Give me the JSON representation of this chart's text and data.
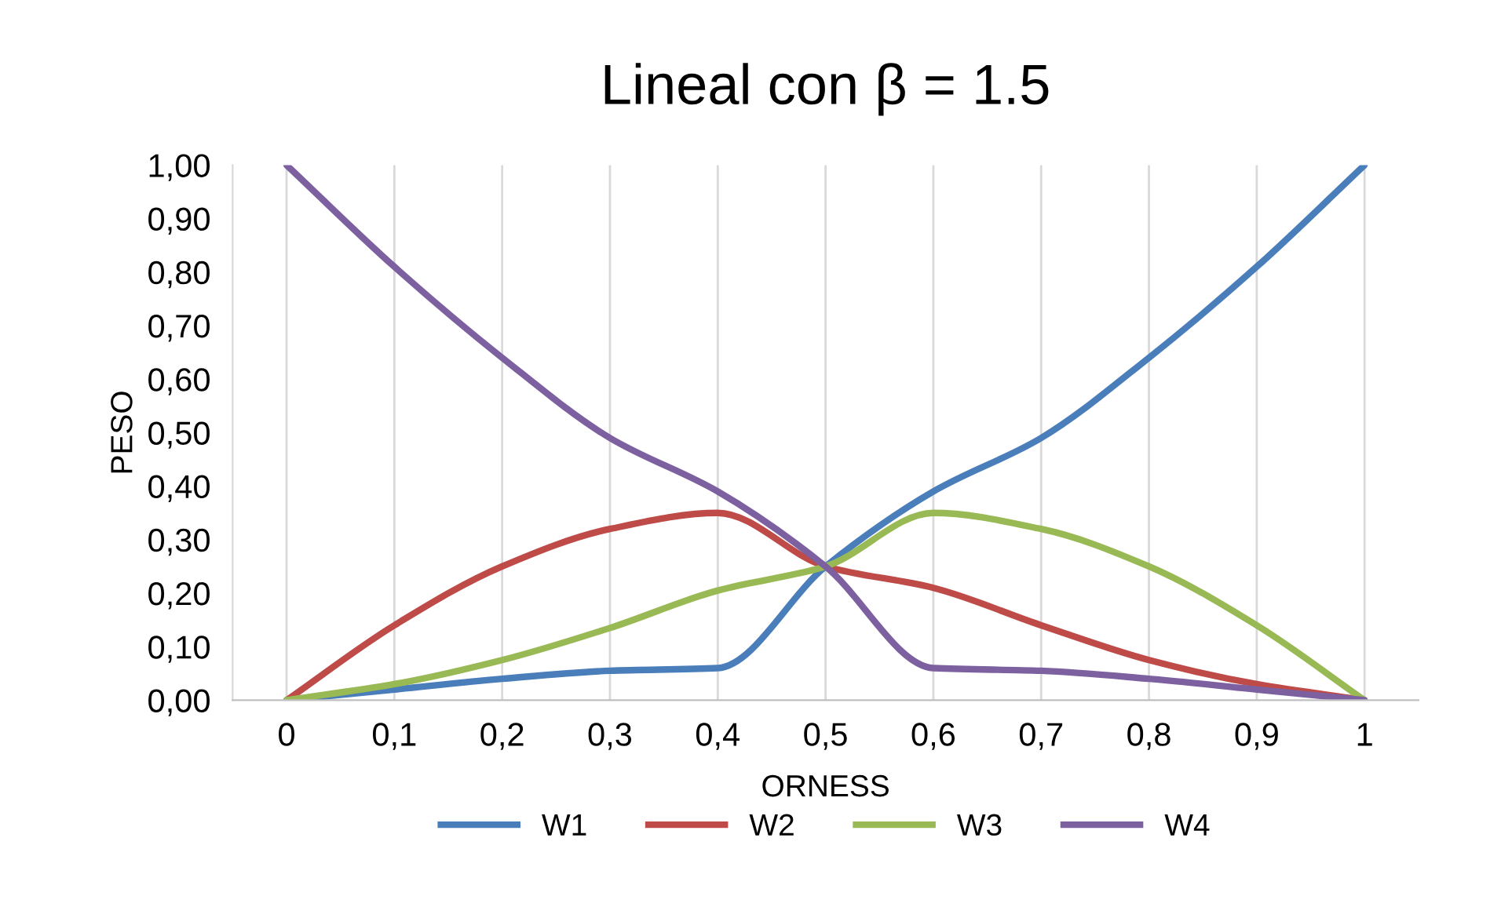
{
  "chart_data": {
    "type": "line",
    "title": "Lineal con β = 1.5",
    "xlabel": "ORNESS",
    "ylabel": "PESO",
    "categories": [
      "0",
      "0,1",
      "0,2",
      "0,3",
      "0,4",
      "0,5",
      "0,6",
      "0,7",
      "0,8",
      "0,9",
      "1"
    ],
    "series": [
      {
        "name": "W1",
        "color": "#4a7ebb",
        "values": [
          0,
          0.02,
          0.04,
          0.055,
          0.06,
          0.25,
          0.39,
          0.49,
          0.64,
          0.81,
          1
        ]
      },
      {
        "name": "W2",
        "color": "#be4b48",
        "values": [
          0,
          0.14,
          0.25,
          0.32,
          0.35,
          0.25,
          0.21,
          0.14,
          0.075,
          0.03,
          0
        ]
      },
      {
        "name": "W3",
        "color": "#98b954",
        "values": [
          0,
          0.03,
          0.075,
          0.135,
          0.205,
          0.25,
          0.35,
          0.32,
          0.25,
          0.14,
          0
        ]
      },
      {
        "name": "W4",
        "color": "#7d60a0",
        "values": [
          1,
          0.81,
          0.64,
          0.49,
          0.39,
          0.25,
          0.06,
          0.055,
          0.04,
          0.02,
          0
        ]
      }
    ],
    "ylim": [
      0,
      1
    ],
    "yticks": [
      {
        "value": 0,
        "label": "0,00"
      },
      {
        "value": 0.1,
        "label": "0,10"
      },
      {
        "value": 0.2,
        "label": "0,20"
      },
      {
        "value": 0.3,
        "label": "0,30"
      },
      {
        "value": 0.4,
        "label": "0,40"
      },
      {
        "value": 0.5,
        "label": "0,50"
      },
      {
        "value": 0.6,
        "label": "0,60"
      },
      {
        "value": 0.7,
        "label": "0,70"
      },
      {
        "value": 0.8,
        "label": "0,80"
      },
      {
        "value": 0.9,
        "label": "0,90"
      },
      {
        "value": 1,
        "label": "1,00"
      }
    ],
    "grid": "x",
    "legend": "bottom",
    "line_style": "solid"
  }
}
